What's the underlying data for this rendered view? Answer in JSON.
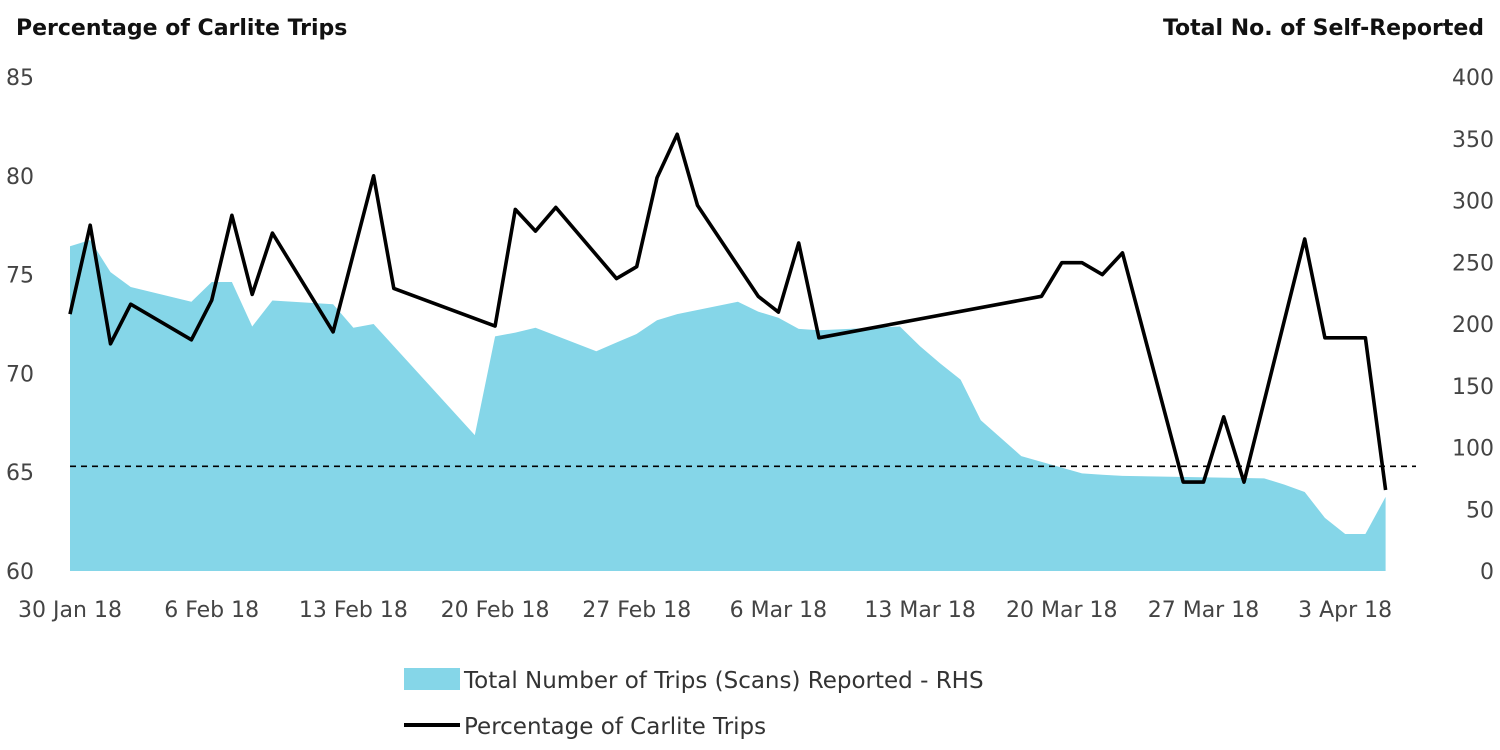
{
  "chart_data": {
    "type": "area",
    "left_axis_title": "Percentage of Carlite Trips",
    "right_axis_title": "Total No. of Self-Reported",
    "left_ylim": [
      60,
      85
    ],
    "left_yticks": [
      "60",
      "65",
      "70",
      "75",
      "80",
      "85"
    ],
    "right_ylim": [
      0,
      400
    ],
    "right_yticks": [
      "0",
      "50",
      "100",
      "150",
      "200",
      "250",
      "300",
      "350",
      "400"
    ],
    "x_tick_labels": [
      "30 Jan 18",
      "6 Feb 18",
      "13 Feb 18",
      "20 Feb 18",
      "27 Feb 18",
      "6 Mar 18",
      "13 Mar 18",
      "20 Mar 18",
      "27 Mar 18",
      "3 Apr 18"
    ],
    "x_range_days": [
      0,
      66.5
    ],
    "reference_line_left": 65.3,
    "colors": {
      "area": "#85d6e8",
      "line": "#000000",
      "reference": "#000000"
    },
    "series": [
      {
        "name": "Total Number of Trips (Scans) Reported - RHS",
        "axis": "right",
        "type": "area",
        "x_days": [
          0,
          1,
          2,
          3,
          6,
          7,
          8,
          9,
          10,
          12,
          13,
          14,
          15,
          20,
          21,
          22,
          23,
          26,
          27,
          28,
          29,
          30,
          33,
          34,
          35,
          36,
          37,
          41,
          42,
          43,
          44,
          45,
          47,
          50,
          51,
          52,
          59,
          60,
          61,
          62,
          63,
          64,
          65
        ],
        "values": [
          263,
          268,
          242,
          230,
          218,
          234,
          234,
          198,
          219,
          217,
          216,
          197,
          200,
          110,
          190,
          193,
          197,
          178,
          185,
          192,
          203,
          208,
          218,
          210,
          205,
          196,
          195,
          198,
          182,
          168,
          155,
          122,
          93,
          79,
          78,
          77,
          75,
          70,
          64,
          43,
          30,
          30,
          60
        ]
      },
      {
        "name": "Percentage of Carlite Trips",
        "axis": "left",
        "type": "line",
        "x_days": [
          0,
          1,
          2,
          3,
          6,
          7,
          8,
          9,
          10,
          13,
          15,
          16,
          21,
          22,
          23,
          24,
          27,
          28,
          29,
          30,
          31,
          34,
          35,
          36,
          37,
          48,
          49,
          50,
          51,
          52,
          55,
          56,
          57,
          58,
          61,
          62,
          63,
          64,
          65
        ],
        "values": [
          73.0,
          77.5,
          71.5,
          73.5,
          71.7,
          73.7,
          78.0,
          74.0,
          77.1,
          72.1,
          80.0,
          74.3,
          72.4,
          78.3,
          77.2,
          78.4,
          74.8,
          75.4,
          79.9,
          82.1,
          78.5,
          73.9,
          73.1,
          76.6,
          71.8,
          73.9,
          75.6,
          75.6,
          75.0,
          76.1,
          64.5,
          64.5,
          67.8,
          64.5,
          76.8,
          71.8,
          71.8,
          71.8,
          64.1
        ]
      }
    ],
    "legend_position": "bottom"
  }
}
